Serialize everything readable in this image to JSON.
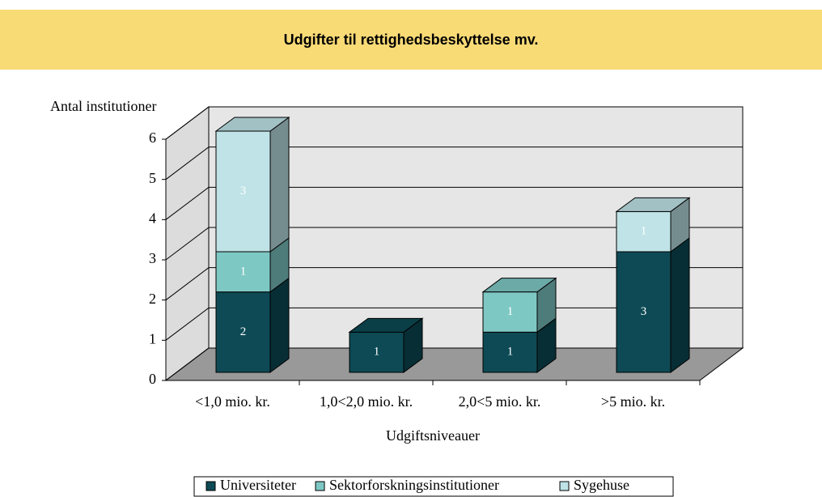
{
  "chart_data": {
    "type": "bar3d_stacked",
    "title": "Udgifter til rettighedsbeskyttelse mv.",
    "ylabel": "Antal institutioner",
    "xlabel": "Udgiftsniveauer",
    "categories": [
      "<1,0 mio. kr.",
      "1,0<2,0 mio. kr.",
      "2,0<5 mio. kr.",
      ">5 mio. kr."
    ],
    "series": [
      {
        "name": "Universiteter",
        "color": "#0d4a55",
        "values": [
          2,
          1,
          1,
          3
        ]
      },
      {
        "name": "Sektorforskningsinstitutioner",
        "color": "#7ec8c4",
        "values": [
          1,
          null,
          1,
          null
        ]
      },
      {
        "name": "Sygehuse",
        "color": "#bfe3e6",
        "values": [
          3,
          null,
          null,
          1
        ]
      }
    ],
    "ylim": [
      0,
      6
    ],
    "yticks": [
      0,
      1,
      2,
      3,
      4,
      5,
      6
    ],
    "grid": true,
    "legend": "bottom"
  }
}
